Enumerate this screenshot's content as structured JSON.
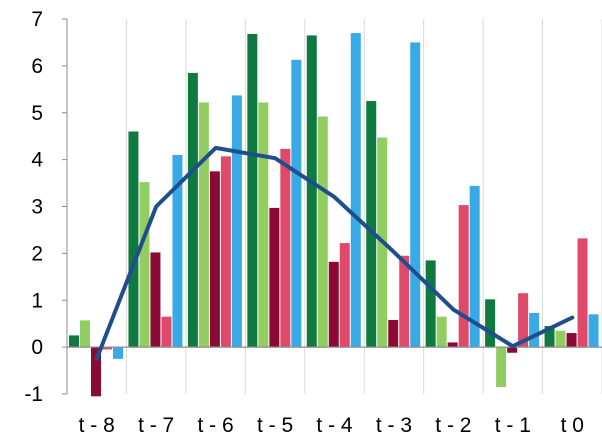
{
  "chart_data": {
    "type": "bar",
    "title": "",
    "xlabel": "",
    "ylabel": "",
    "categories": [
      "t - 8",
      "t - 7",
      "t - 6",
      "t - 5",
      "t - 4",
      "t - 3",
      "t - 2",
      "t - 1",
      "t 0"
    ],
    "y_ticks": [
      "7",
      "6",
      "5",
      "4",
      "3",
      "2",
      "1",
      "0",
      "-1"
    ],
    "ylim": [
      -1,
      7
    ],
    "grid": "vertical lines at category boundaries",
    "legend": "none",
    "series": [
      {
        "color": "#0F7A3F",
        "values": [
          0.25,
          4.6,
          5.85,
          6.68,
          6.65,
          5.25,
          1.85,
          1.02,
          0.45
        ]
      },
      {
        "color": "#92CD62",
        "values": [
          0.57,
          3.52,
          5.22,
          5.22,
          4.92,
          4.47,
          0.65,
          -0.85,
          0.35
        ]
      },
      {
        "color": "#8B0A35",
        "values": [
          -1.05,
          2.02,
          3.75,
          2.97,
          1.82,
          0.58,
          0.1,
          -0.12,
          0.3
        ]
      },
      {
        "color": "#E04A6A",
        "values": [
          -0.05,
          0.65,
          4.07,
          4.23,
          2.22,
          1.95,
          3.03,
          1.15,
          2.32
        ]
      },
      {
        "color": "#3AAAE6",
        "values": [
          -0.25,
          4.1,
          5.37,
          6.13,
          6.7,
          6.5,
          3.44,
          0.73,
          0.7
        ]
      }
    ],
    "line": {
      "color": "#1F4E8C",
      "values": [
        -0.25,
        3.0,
        4.25,
        4.03,
        3.2,
        2.03,
        0.8,
        0.02,
        0.63
      ]
    }
  }
}
